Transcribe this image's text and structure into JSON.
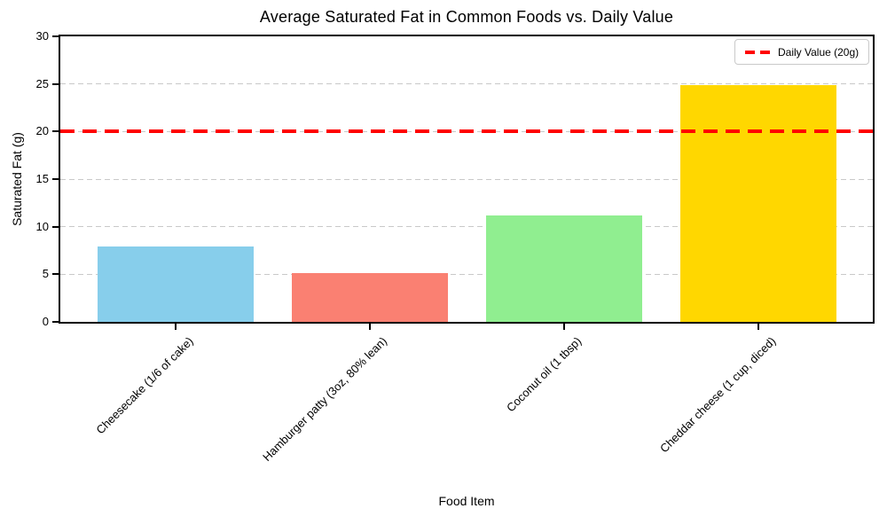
{
  "chart_data": {
    "type": "bar",
    "title": "Average Saturated Fat in Common Foods vs. Daily Value",
    "xlabel": "Food Item",
    "ylabel": "Saturated Fat (g)",
    "categories": [
      "Cheesecake (1/6 of cake)",
      "Hamburger patty (3oz, 80% lean)",
      "Coconut oil (1 tbsp)",
      "Cheddar cheese (1 cup, diced)"
    ],
    "values": [
      7.9,
      5.1,
      11.2,
      24.9
    ],
    "bar_colors": [
      "#87CEEB",
      "#FA8072",
      "#90EE90",
      "#FFD700"
    ],
    "ylim": [
      0,
      30
    ],
    "yticks": [
      0,
      5,
      10,
      15,
      20,
      25,
      30
    ],
    "grid": "horizontal-dashed",
    "grid_color": "#c9c9c9",
    "reference_line": {
      "value": 20,
      "color": "#FF0000",
      "style": "dashed"
    },
    "legend": {
      "position": "top-right",
      "entries": [
        {
          "label": "Daily Value (20g)",
          "color": "#FF0000",
          "style": "dashed-line"
        }
      ]
    }
  }
}
